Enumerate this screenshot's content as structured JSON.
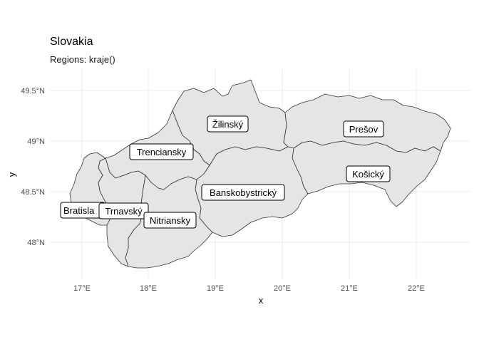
{
  "title": "Slovakia",
  "subtitle": "Regions: kraje()",
  "axes": {
    "xlabel": "x",
    "ylabel": "y",
    "x_ticks": [
      "17°E",
      "18°E",
      "19°E",
      "20°E",
      "21°E",
      "22°E"
    ],
    "y_ticks": [
      "49.5°N",
      "49°N",
      "48.5°N",
      "48°N"
    ]
  },
  "regions": [
    {
      "name": "Bratislavský",
      "label": "Bratisla"
    },
    {
      "name": "Trnavský",
      "label": "Trnavský"
    },
    {
      "name": "Trenciansky",
      "label": "Trenciansky"
    },
    {
      "name": "Nitriansky",
      "label": "Nitriansky"
    },
    {
      "name": "Žilinský",
      "label": "Žilinský"
    },
    {
      "name": "Banskobystrický",
      "label": "Banskobystrický"
    },
    {
      "name": "Prešov",
      "label": "Prešov"
    },
    {
      "name": "Košický",
      "label": "Košický"
    }
  ],
  "colors": {
    "region_fill": "#e5e5e5",
    "border": "#333333",
    "grid": "#ebebeb"
  }
}
